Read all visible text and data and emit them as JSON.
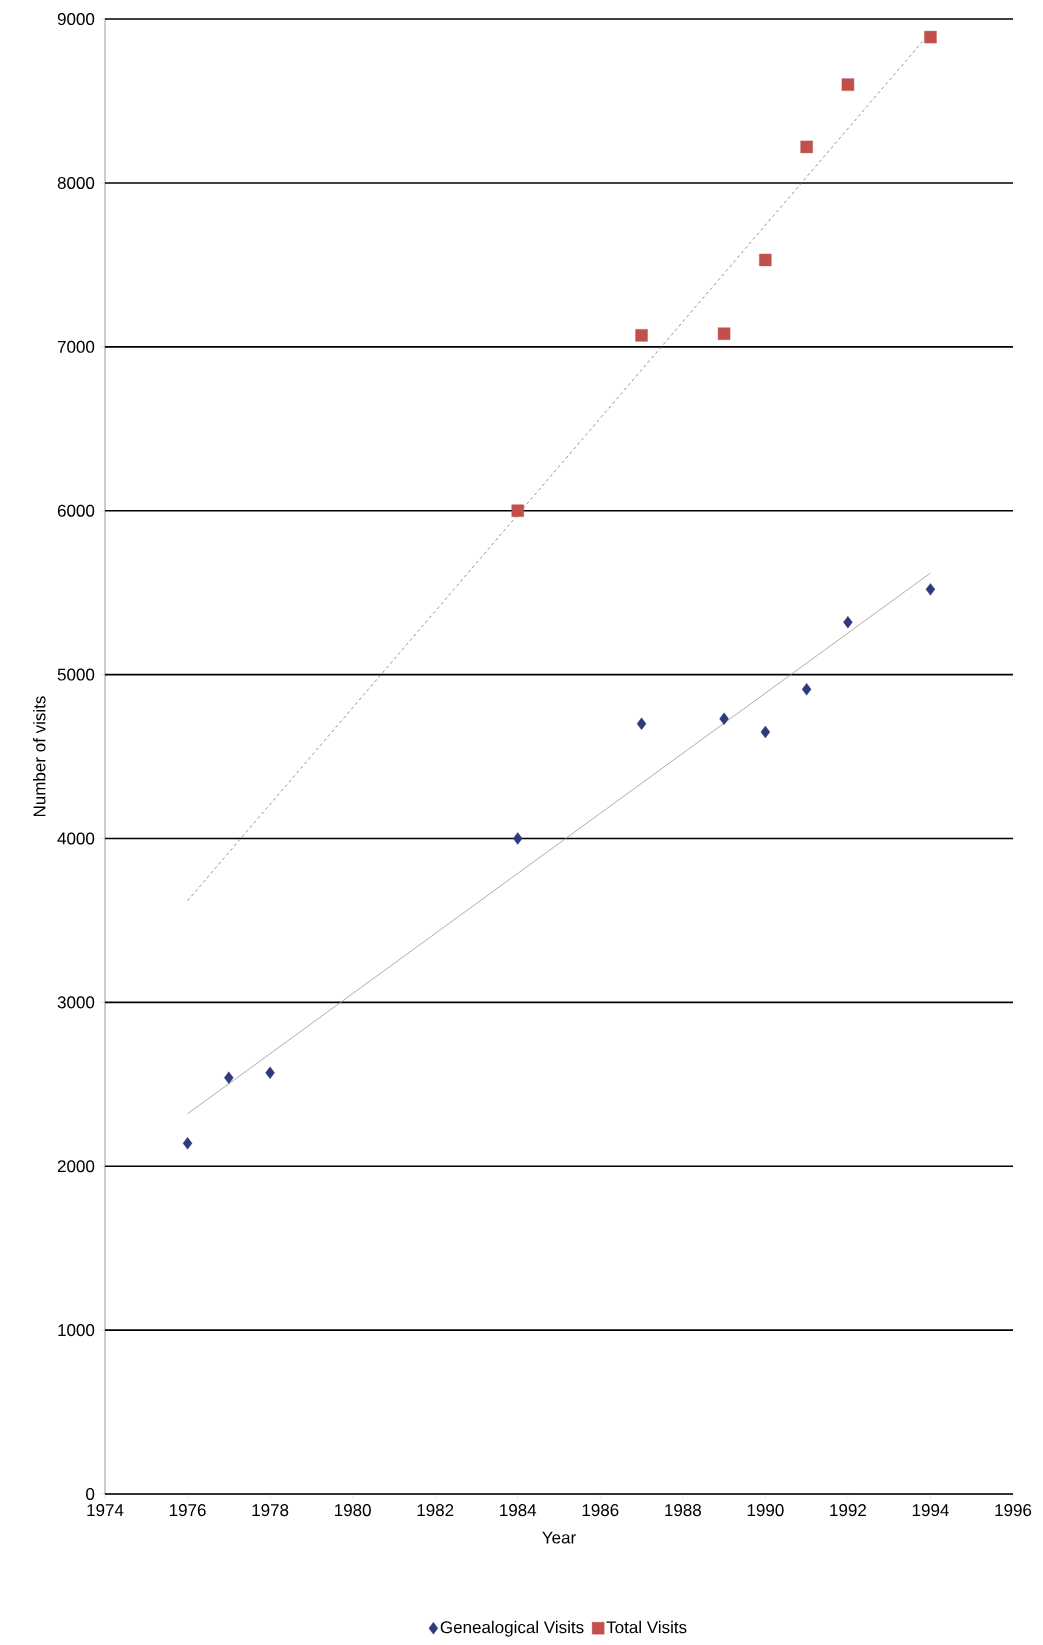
{
  "chart_data": {
    "type": "scatter",
    "xlabel": "Year",
    "ylabel": "Number of visits",
    "xlim": [
      1974,
      1996
    ],
    "xticks": [
      1974,
      1976,
      1978,
      1980,
      1982,
      1984,
      1986,
      1988,
      1990,
      1992,
      1994,
      1996
    ],
    "ylim": [
      0,
      9000
    ],
    "yticks": [
      0,
      1000,
      2000,
      3000,
      4000,
      5000,
      6000,
      7000,
      8000,
      9000
    ],
    "grid": "y",
    "legend": "bottom",
    "series": [
      {
        "name": "Genealogical Visits",
        "marker": "diamond",
        "color": "#2e3a7a",
        "x": [
          1976,
          1977,
          1978,
          1984,
          1987,
          1989,
          1990,
          1991,
          1992,
          1994
        ],
        "values": [
          2140,
          2540,
          2570,
          4000,
          4700,
          4730,
          4650,
          4910,
          5320,
          5520
        ]
      },
      {
        "name": "Total Visits",
        "marker": "square",
        "color": "#c0504d",
        "x": [
          1984,
          1987,
          1989,
          1990,
          1991,
          1992,
          1994
        ],
        "values": [
          6000,
          7070,
          7080,
          7530,
          8220,
          8600,
          8890
        ]
      },
      {
        "type": "line",
        "marker": "none",
        "line_style": "solid",
        "color": "#999999",
        "x": [
          1976,
          1994
        ],
        "values": [
          2320,
          5620
        ]
      },
      {
        "type": "line",
        "marker": "none",
        "line_style": "dashed",
        "color": "#777777",
        "x": [
          1976,
          1994
        ],
        "values": [
          3620,
          8920
        ]
      }
    ]
  }
}
